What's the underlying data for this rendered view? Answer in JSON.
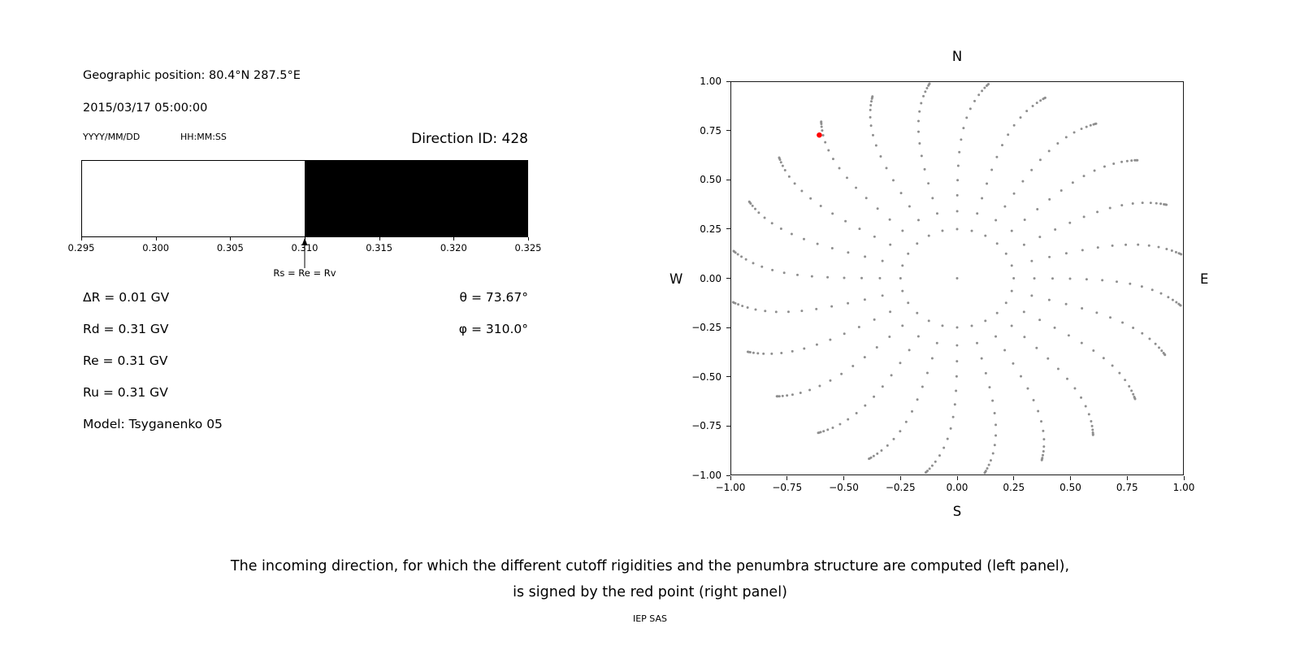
{
  "colors": {
    "text": "#000000",
    "axis": "#1a1a1a",
    "dot_gray": "#8f8f8f",
    "selected_red": "#ff0000",
    "penumbra_allowed": "#ffffff",
    "penumbra_forbidden": "#000000"
  },
  "left_panel": {
    "geo_position": "Geographic position: 80.4°N 287.5°E",
    "datetime": "2015/03/17 05:00:00",
    "date_format_label": "YYYY/MM/DD",
    "time_format_label": "HH:MM:SS",
    "direction_id": "Direction ID: 428",
    "params": [
      "ΔR = 0.01 GV",
      "Rd = 0.31 GV",
      "Re = 0.31 GV",
      "Ru = 0.31 GV",
      "Model: Tsyganenko 05"
    ],
    "angles": [
      "θ = 73.67°",
      "φ = 310.0°"
    ]
  },
  "caption": {
    "line1": "The incoming direction, for which the different cutoff rigidities and the penumbra structure are computed (left panel),",
    "line2": "is signed by the red point (right panel)",
    "credit": "IEP SAS"
  },
  "chart_data": [
    {
      "type": "heatmap",
      "title": "Penumbra structure band",
      "xlim": [
        0.295,
        0.325
      ],
      "x_ticks": [
        0.295,
        0.3,
        0.305,
        0.31,
        0.315,
        0.32,
        0.325
      ],
      "bands": [
        {
          "from": 0.295,
          "to": 0.31,
          "color": "#ffffff"
        },
        {
          "from": 0.31,
          "to": 0.325,
          "color": "#000000"
        }
      ],
      "annotation": {
        "value": 0.31,
        "label": "Rs = Re = Rv"
      }
    },
    {
      "type": "scatter",
      "title": "Incoming direction sky map",
      "xlim": [
        -1.0,
        1.0
      ],
      "ylim": [
        -1.0,
        1.0
      ],
      "x_ticks": [
        -1.0,
        -0.75,
        -0.5,
        -0.25,
        0.0,
        0.25,
        0.5,
        0.75,
        1.0
      ],
      "y_ticks": [
        -1.0,
        -0.75,
        -0.5,
        -0.25,
        0.0,
        0.25,
        0.5,
        0.75,
        1.0
      ],
      "compass_labels": {
        "top": "N",
        "bottom": "S",
        "left": "W",
        "right": "E"
      },
      "dot_color": "#8f8f8f",
      "center_point": {
        "x": 0.0,
        "y": 0.0
      },
      "red_point": {
        "x": -0.61,
        "y": 0.73,
        "color": "#ff0000"
      },
      "spoke_pattern": {
        "azimuth_start_deg": 0,
        "azimuth_step_deg": 15,
        "azimuth_count": 24,
        "zenith_angles_deg": [
          14.5,
          20,
          25,
          30,
          35,
          40,
          45,
          50,
          55,
          60,
          65,
          70,
          74,
          78,
          82,
          85,
          88
        ],
        "radius_rule": "r = sin(zenith)",
        "curvature_deg_at_r1": 8
      }
    }
  ]
}
